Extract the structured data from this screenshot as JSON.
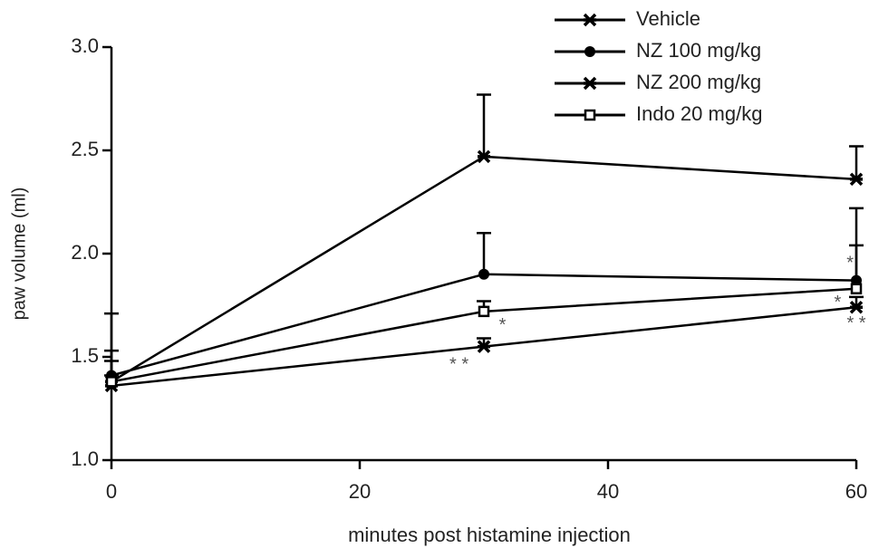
{
  "chart_data": {
    "type": "line",
    "xlabel": "minutes post histamine injection",
    "ylabel": "paw volume (ml)",
    "x": [
      0,
      30,
      60
    ],
    "xlim": [
      0,
      60
    ],
    "xticks": [
      0,
      20,
      40,
      60
    ],
    "ylim": [
      1.0,
      3.0
    ],
    "yticks": [
      {
        "value": 1.0,
        "label": "1.0"
      },
      {
        "value": 1.5,
        "label": "1.5"
      },
      {
        "value": 2.0,
        "label": "2.0"
      },
      {
        "value": 2.5,
        "label": "2.5"
      },
      {
        "value": 3.0,
        "label": "3.0"
      }
    ],
    "legend": "upper right",
    "series": [
      {
        "name": "Vehicle",
        "color": "#000000",
        "marker": "x",
        "values": [
          1.38,
          2.47,
          2.36
        ],
        "errors": [
          0.33,
          0.3,
          0.16
        ]
      },
      {
        "name": "NZ 100 mg/kg",
        "color": "#000000",
        "marker": "circle",
        "values": [
          1.41,
          1.9,
          1.87
        ],
        "errors": [
          0.12,
          0.2,
          0.35
        ]
      },
      {
        "name": "NZ 200 mg/kg",
        "color": "#000000",
        "marker": "x",
        "values": [
          1.36,
          1.55,
          1.74
        ],
        "errors": [
          0.05,
          0.04,
          0.05
        ]
      },
      {
        "name": "Indo 20 mg/kg",
        "color": "#000000",
        "marker": "square",
        "values": [
          1.38,
          1.72,
          1.83
        ],
        "errors": [
          0.1,
          0.05,
          0.21
        ]
      }
    ],
    "annotations": [
      {
        "text": "* *",
        "x": 28,
        "y": 1.46
      },
      {
        "text": "*",
        "x": 31.5,
        "y": 1.65
      },
      {
        "text": "*",
        "x": 59.5,
        "y": 1.95
      },
      {
        "text": "*",
        "x": 58.5,
        "y": 1.76
      },
      {
        "text": "* *",
        "x": 60,
        "y": 1.66
      }
    ]
  }
}
